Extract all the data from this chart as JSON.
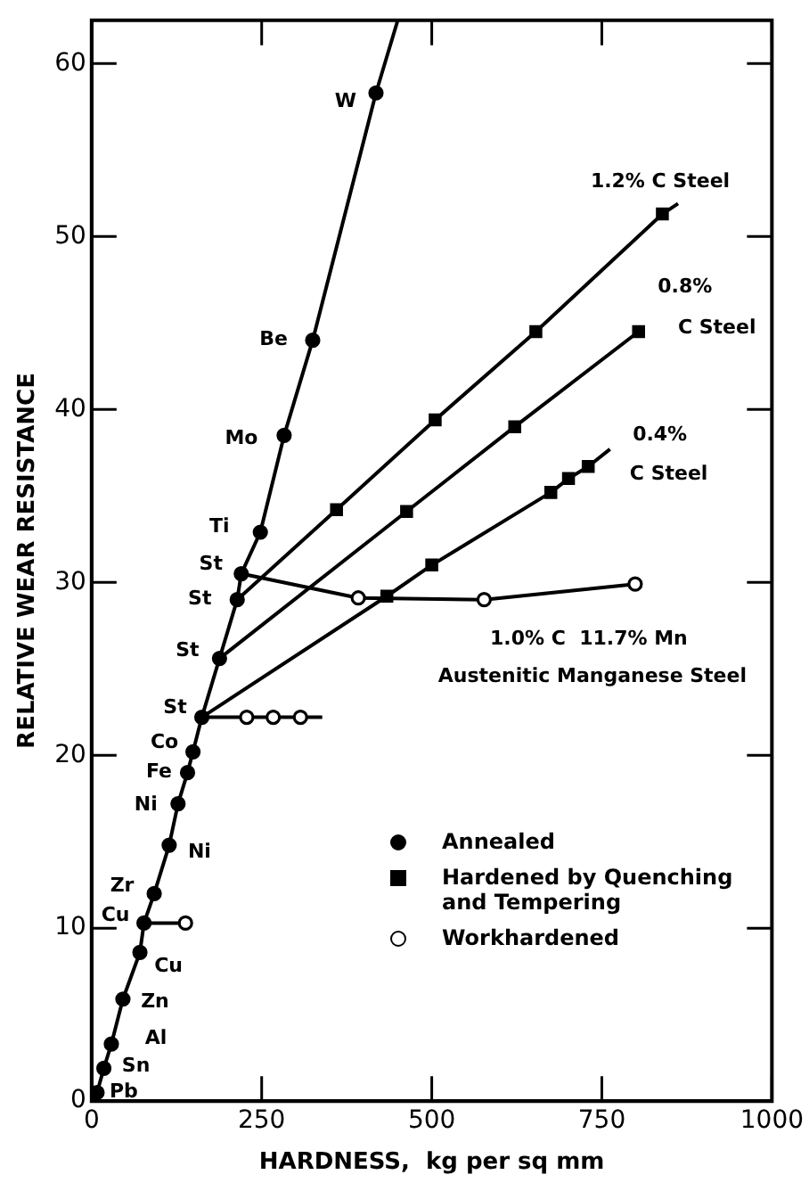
{
  "chart_data": {
    "type": "scatter",
    "xlabel": "HARDNESS,  kg per sq mm",
    "ylabel": "RELATIVE WEAR RESISTANCE",
    "xlim": [
      0,
      1000
    ],
    "ylim": [
      0,
      62.5
    ],
    "xticks": [
      0,
      250,
      500,
      750,
      1000
    ],
    "yticks": [
      0,
      10,
      20,
      30,
      40,
      50,
      60
    ],
    "legend": "right",
    "series": [
      {
        "name": "Annealed",
        "marker": "circle",
        "color": "#000000",
        "x": [
          8,
          18,
          29,
          46,
          71,
          77,
          92,
          114,
          127,
          141,
          149,
          162,
          188,
          214,
          220,
          248,
          283,
          325,
          418
        ],
        "values": [
          0.5,
          1.9,
          3.3,
          5.9,
          8.6,
          10.3,
          12.0,
          14.8,
          17.2,
          19.0,
          20.2,
          22.2,
          25.6,
          29.0,
          30.5,
          32.9,
          38.5,
          44.0,
          58.3
        ]
      },
      {
        "name": "Hardened by Quenching and Tempering",
        "marker": "square",
        "color": "#000000",
        "x": [
          360,
          505,
          653,
          839,
          463,
          622,
          804,
          434,
          500,
          675,
          701,
          730
        ],
        "values": [
          34.2,
          39.4,
          44.5,
          51.3,
          34.1,
          39.0,
          44.5,
          29.2,
          31.0,
          35.2,
          36.0,
          36.7
        ]
      },
      {
        "name": "Workhardened",
        "marker": "circle",
        "color": "#000000",
        "x": [
          392,
          577,
          799,
          228,
          267,
          307,
          138
        ],
        "values": [
          29.1,
          29.0,
          29.9,
          22.2,
          22.2,
          22.2,
          10.3
        ]
      },
      {
        "type": "line",
        "marker": "none",
        "color": "#000000",
        "x": [
          0,
          8,
          18,
          29,
          46,
          71,
          77,
          92,
          114,
          127,
          141,
          149,
          162,
          188,
          214,
          220,
          248,
          283,
          325,
          418,
          450
        ],
        "values": [
          0,
          0.5,
          1.9,
          3.3,
          5.9,
          8.6,
          10.3,
          12.0,
          14.8,
          17.2,
          19.0,
          20.2,
          22.2,
          25.6,
          29.0,
          30.5,
          32.9,
          38.5,
          44.0,
          58.3,
          62.5
        ]
      },
      {
        "type": "line",
        "marker": "none",
        "color": "#000000",
        "x": [
          214,
          360,
          505,
          653,
          839,
          862
        ],
        "values": [
          29.0,
          34.2,
          39.4,
          44.5,
          51.3,
          51.9
        ]
      },
      {
        "type": "line",
        "marker": "none",
        "color": "#000000",
        "x": [
          188,
          463,
          622,
          804
        ],
        "values": [
          25.6,
          34.1,
          39.0,
          44.5
        ]
      },
      {
        "type": "line",
        "marker": "none",
        "color": "#000000",
        "x": [
          162,
          434,
          500,
          675,
          701,
          730,
          762
        ],
        "values": [
          22.2,
          29.2,
          31.0,
          35.2,
          36.0,
          36.7,
          37.7
        ]
      },
      {
        "type": "line",
        "marker": "none",
        "color": "#000000",
        "x": [
          220,
          392,
          577,
          799
        ],
        "values": [
          30.5,
          29.1,
          29.0,
          29.9
        ]
      },
      {
        "type": "line",
        "marker": "none",
        "color": "#000000",
        "x": [
          162,
          228,
          267,
          307,
          339
        ],
        "values": [
          22.2,
          22.2,
          22.2,
          22.2,
          22.2
        ]
      },
      {
        "type": "line",
        "marker": "none",
        "color": "#000000",
        "x": [
          77,
          138
        ],
        "values": [
          10.3,
          10.3
        ]
      }
    ],
    "annotations": [
      {
        "text": "W",
        "x": 418,
        "y": 58.3
      },
      {
        "text": "Be",
        "x": 325,
        "y": 44.0
      },
      {
        "text": "Mo",
        "x": 283,
        "y": 38.5
      },
      {
        "text": "Ti",
        "x": 248,
        "y": 32.9
      },
      {
        "text": "St",
        "x": 220,
        "y": 30.5
      },
      {
        "text": "St",
        "x": 214,
        "y": 29.0
      },
      {
        "text": "St",
        "x": 188,
        "y": 25.6
      },
      {
        "text": "St",
        "x": 162,
        "y": 22.2
      },
      {
        "text": "Co",
        "x": 149,
        "y": 20.2
      },
      {
        "text": "Fe",
        "x": 141,
        "y": 19.0
      },
      {
        "text": "Ni",
        "x": 127,
        "y": 17.2
      },
      {
        "text": "Ni",
        "x": 114,
        "y": 14.8
      },
      {
        "text": "Zr",
        "x": 92,
        "y": 12.0
      },
      {
        "text": "Cu",
        "x": 77,
        "y": 10.3
      },
      {
        "text": "Cu",
        "x": 71,
        "y": 8.6
      },
      {
        "text": "Zn",
        "x": 46,
        "y": 5.9
      },
      {
        "text": "Al",
        "x": 29,
        "y": 3.3
      },
      {
        "text": "Sn",
        "x": 18,
        "y": 1.9
      },
      {
        "text": "Pb",
        "x": 8,
        "y": 0.5
      },
      {
        "text": "1.2% C Steel",
        "x": 862,
        "y": 51.9
      },
      {
        "text": "0.8%",
        "x": 804,
        "y": 44.5
      },
      {
        "text": "C Steel",
        "x": 804,
        "y": 44.5
      },
      {
        "text": "0.4%",
        "x": 762,
        "y": 37.7
      },
      {
        "text": "C Steel",
        "x": 762,
        "y": 37.7
      },
      {
        "text": "1.0% C  11.7% Mn",
        "x": 799,
        "y": 29.9
      },
      "Austenitic Manganese Steel"
    ]
  }
}
